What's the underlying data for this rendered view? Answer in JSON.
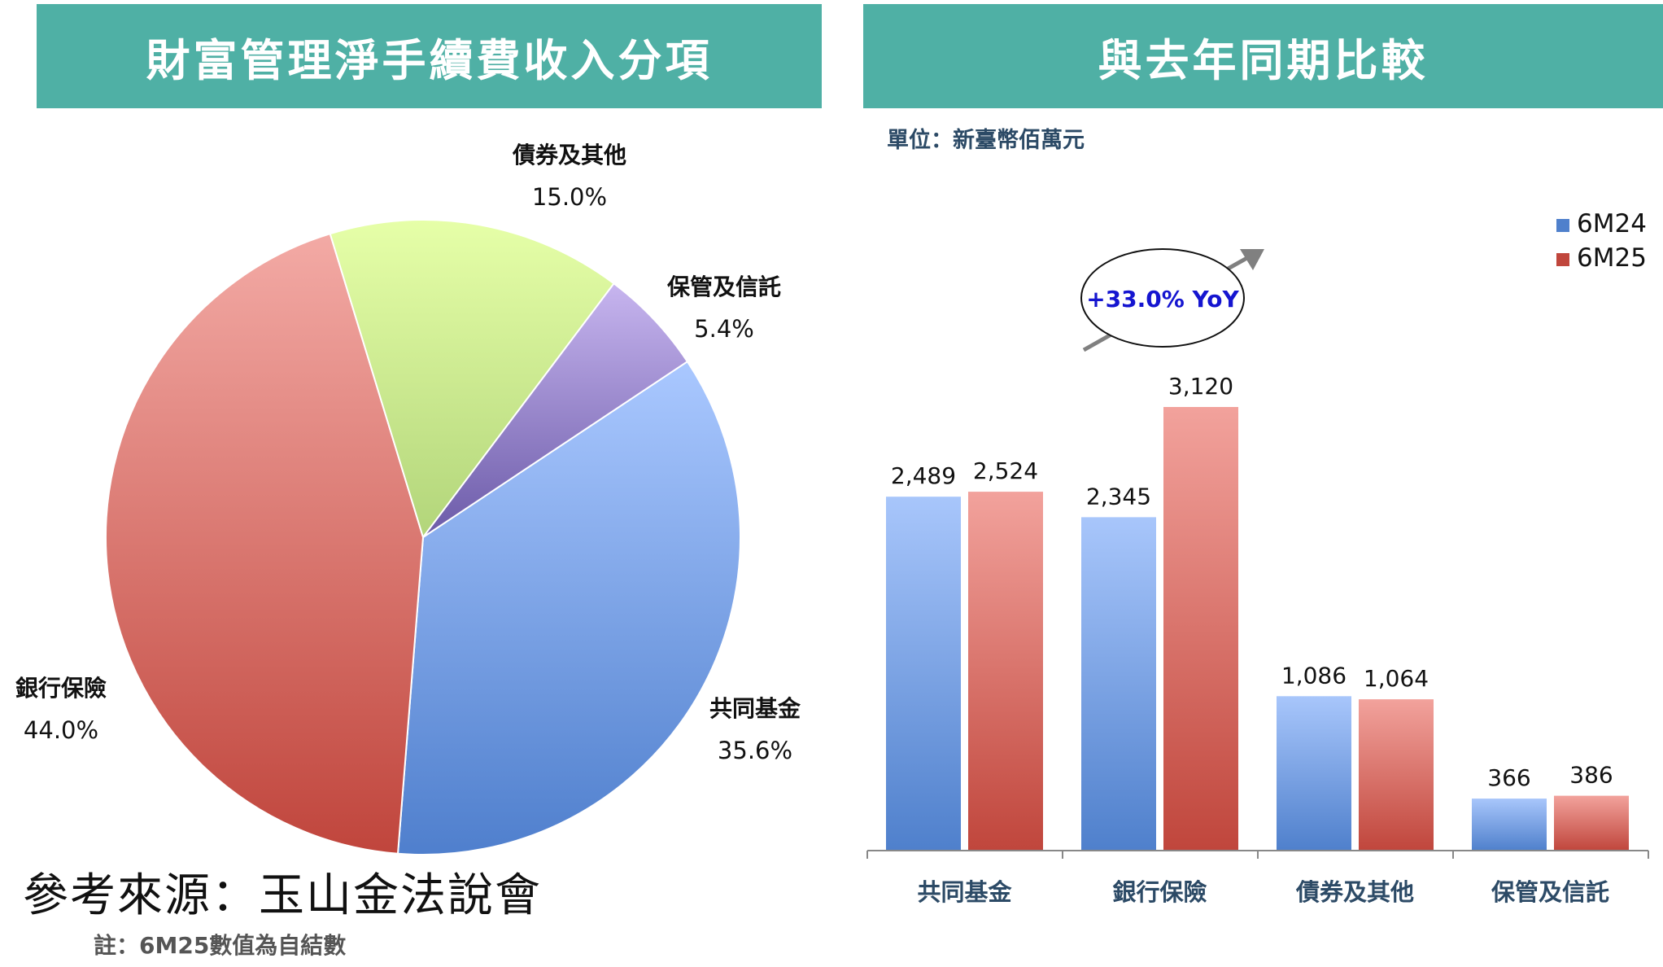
{
  "headers": {
    "left": "財富管理淨手續費收入分項",
    "right": "與去年同期比較"
  },
  "unit_label": "單位：新臺幣佰萬元",
  "source_label": "參考來源：玉山金法說會",
  "footnote": "註：6M25數值為自結數",
  "colors": {
    "header_bg": "#4fb0a5",
    "blue": "#4f81cc",
    "red": "#c0504d",
    "green": "#c4e48a",
    "purple": "#8a78bf",
    "yoy_text": "#1515d0"
  },
  "chart_data": [
    {
      "type": "pie",
      "slices": [
        {
          "label": "共同基金",
          "value": 35.6,
          "pct_label": "35.6%"
        },
        {
          "label": "銀行保險",
          "value": 44.0,
          "pct_label": "44.0%"
        },
        {
          "label": "債券及其他",
          "value": 15.0,
          "pct_label": "15.0%"
        },
        {
          "label": "保管及信託",
          "value": 5.4,
          "pct_label": "5.4%"
        }
      ]
    },
    {
      "type": "bar",
      "categories": [
        "共同基金",
        "銀行保險",
        "債券及其他",
        "保管及信託"
      ],
      "series": [
        {
          "name": "6M24",
          "values": [
            2489,
            2345,
            1086,
            366
          ],
          "labels": [
            "2,489",
            "2,345",
            "1,086",
            "366"
          ]
        },
        {
          "name": "6M25",
          "values": [
            2524,
            3120,
            1064,
            386
          ],
          "labels": [
            "2,524",
            "3,120",
            "1,064",
            "386"
          ]
        }
      ],
      "annotation": "+33.0% YoY",
      "legend_position": "top-right",
      "grid": false,
      "ylim": [
        0,
        3120
      ]
    }
  ]
}
